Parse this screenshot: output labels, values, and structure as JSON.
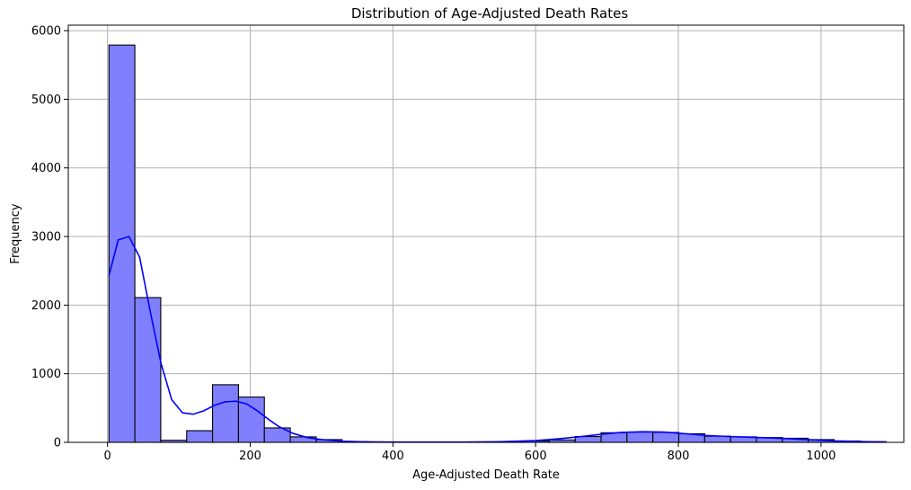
{
  "chart_data": {
    "type": "histogram",
    "title": "Distribution of Age-Adjusted Death Rates",
    "xlabel": "Age-Adjusted Death Rate",
    "ylabel": "Frequency",
    "xlim": [
      -55,
      1116
    ],
    "ylim": [
      0,
      6080
    ],
    "xticks": [
      0,
      200,
      400,
      600,
      800,
      1000
    ],
    "yticks": [
      0,
      1000,
      2000,
      3000,
      4000,
      5000,
      6000
    ],
    "grid": true,
    "colors": {
      "bar_fill": "#8080ff",
      "bar_edge": "#000000",
      "kde": "#0000ff",
      "grid": "#b0b0b0"
    },
    "bins": [
      {
        "x0": 2,
        "x1": 38.3,
        "count": 5790
      },
      {
        "x0": 38.3,
        "x1": 74.6,
        "count": 2110
      },
      {
        "x0": 74.6,
        "x1": 110.9,
        "count": 30
      },
      {
        "x0": 110.9,
        "x1": 147.2,
        "count": 170
      },
      {
        "x0": 147.2,
        "x1": 183.5,
        "count": 840
      },
      {
        "x0": 183.5,
        "x1": 219.8,
        "count": 660
      },
      {
        "x0": 219.8,
        "x1": 256.1,
        "count": 210
      },
      {
        "x0": 256.1,
        "x1": 292.4,
        "count": 80
      },
      {
        "x0": 292.4,
        "x1": 328.7,
        "count": 40
      },
      {
        "x0": 328.7,
        "x1": 365,
        "count": 10
      },
      {
        "x0": 365,
        "x1": 401.3,
        "count": 5
      },
      {
        "x0": 401.3,
        "x1": 437.6,
        "count": 3
      },
      {
        "x0": 437.6,
        "x1": 473.9,
        "count": 3
      },
      {
        "x0": 473.9,
        "x1": 510.2,
        "count": 3
      },
      {
        "x0": 510.2,
        "x1": 546.5,
        "count": 5
      },
      {
        "x0": 546.5,
        "x1": 582.8,
        "count": 10
      },
      {
        "x0": 582.8,
        "x1": 619.1,
        "count": 20
      },
      {
        "x0": 619.1,
        "x1": 655.4,
        "count": 35
      },
      {
        "x0": 655.4,
        "x1": 691.7,
        "count": 85
      },
      {
        "x0": 691.7,
        "x1": 728,
        "count": 140
      },
      {
        "x0": 728,
        "x1": 764.3,
        "count": 150
      },
      {
        "x0": 764.3,
        "x1": 800.6,
        "count": 145
      },
      {
        "x0": 800.6,
        "x1": 836.9,
        "count": 125
      },
      {
        "x0": 836.9,
        "x1": 873.2,
        "count": 90
      },
      {
        "x0": 873.2,
        "x1": 909.5,
        "count": 80
      },
      {
        "x0": 909.5,
        "x1": 945.8,
        "count": 70
      },
      {
        "x0": 945.8,
        "x1": 982.1,
        "count": 60
      },
      {
        "x0": 982.1,
        "x1": 1018.4,
        "count": 40
      },
      {
        "x0": 1018.4,
        "x1": 1054.7,
        "count": 20
      },
      {
        "x0": 1054.7,
        "x1": 1091,
        "count": 10
      }
    ],
    "kde": {
      "x": [
        2,
        15,
        30,
        45,
        60,
        75,
        90,
        105,
        120,
        135,
        150,
        165,
        180,
        195,
        210,
        225,
        240,
        260,
        280,
        300,
        330,
        360,
        400,
        450,
        500,
        550,
        600,
        630,
        660,
        690,
        720,
        750,
        780,
        810,
        840,
        870,
        900,
        930,
        960,
        990,
        1020,
        1050,
        1091
      ],
      "y": [
        2430,
        2950,
        3000,
        2700,
        1900,
        1150,
        620,
        430,
        410,
        460,
        540,
        590,
        600,
        560,
        460,
        340,
        230,
        130,
        70,
        40,
        15,
        8,
        5,
        4,
        5,
        10,
        25,
        50,
        80,
        115,
        145,
        155,
        150,
        125,
        100,
        85,
        75,
        65,
        50,
        35,
        20,
        12,
        5
      ]
    }
  }
}
